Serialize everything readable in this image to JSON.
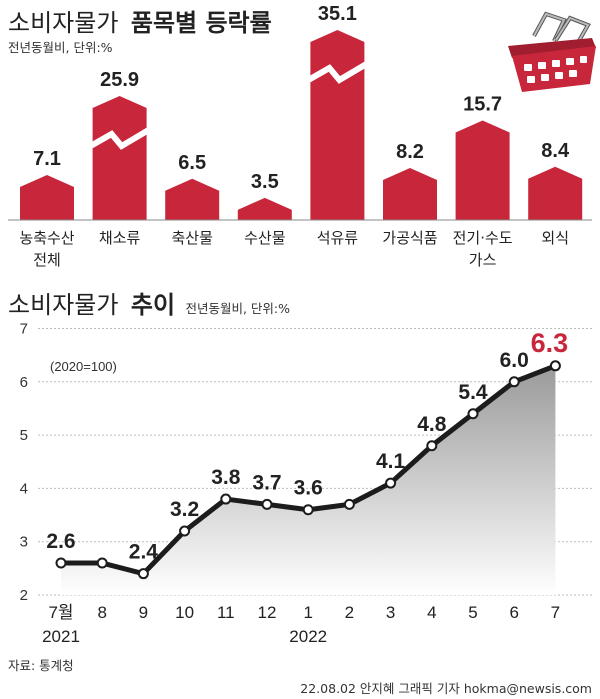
{
  "accent_color": "#c8263a",
  "line_color": "#1c1c1c",
  "basket_icon": "shopping-basket-icon",
  "source": "자료: 통계청",
  "credit": "22.08.02 안지혜 그래픽 기자  hokma@newsis.com",
  "chart_data": [
    {
      "type": "bar",
      "title_regular": "소비자물가",
      "title_bold": "품목별 등락률",
      "unit_note": "전년동월비, 단위:%",
      "categories": [
        [
          "농축수산",
          "전체"
        ],
        [
          "채소류"
        ],
        [
          "축산물"
        ],
        [
          "수산물"
        ],
        [
          "석유류"
        ],
        [
          "가공식품"
        ],
        [
          "전기·수도",
          "가스"
        ],
        [
          "외식"
        ]
      ],
      "values": [
        7.1,
        25.9,
        6.5,
        3.5,
        35.1,
        8.2,
        15.7,
        8.4
      ],
      "value_labels": [
        "7.1",
        "25.9",
        "6.5",
        "3.5",
        "35.1",
        "8.2",
        "15.7",
        "8.4"
      ],
      "axis_break": [
        false,
        true,
        false,
        false,
        true,
        false,
        false,
        false
      ],
      "color": "#c8263a"
    },
    {
      "type": "area",
      "title_regular": "소비자물가",
      "title_bold": "추이",
      "unit_note": "전년동월비, 단위:%",
      "base_note": "(2020=100)",
      "x": [
        "7월",
        "8",
        "9",
        "10",
        "11",
        "12",
        "1",
        "2",
        "3",
        "4",
        "5",
        "6",
        "7"
      ],
      "year_labels": [
        {
          "index": 0,
          "text": "2021"
        },
        {
          "index": 6,
          "text": "2022"
        }
      ],
      "values": [
        2.6,
        2.6,
        2.4,
        3.2,
        3.8,
        3.7,
        3.6,
        3.7,
        4.1,
        4.8,
        5.4,
        6.0,
        6.3
      ],
      "value_labels": [
        "2.6",
        null,
        "2.4",
        "3.2",
        "3.8",
        "3.7",
        "3.6",
        null,
        "4.1",
        "4.8",
        "5.4",
        "6.0",
        "6.3"
      ],
      "yticks": [
        "2",
        "3",
        "4",
        "5",
        "6",
        "7"
      ],
      "ylim": [
        2,
        7
      ],
      "grid": true,
      "highlight_last_color": "#c8263a"
    }
  ]
}
